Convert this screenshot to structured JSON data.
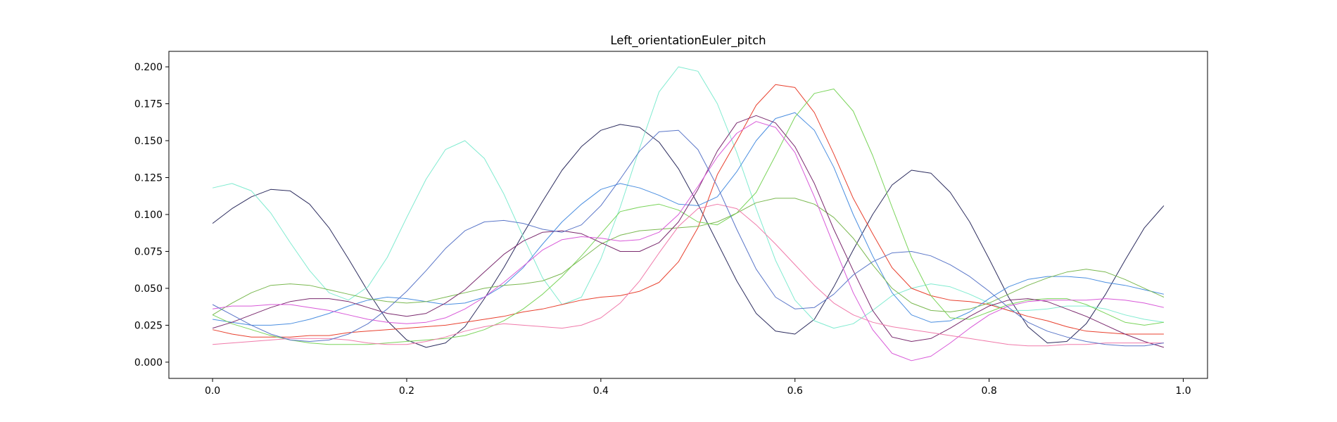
{
  "chart_data": {
    "type": "line",
    "title": "Left_orientationEuler_pitch",
    "xlabel": "",
    "ylabel": "",
    "xlim": [
      -0.045,
      1.025
    ],
    "ylim": [
      -0.011,
      0.2105
    ],
    "xticks": [
      0.0,
      0.2,
      0.4,
      0.6,
      0.8,
      1.0
    ],
    "xtick_labels": [
      "0.0",
      "0.2",
      "0.4",
      "0.6",
      "0.8",
      "1.0"
    ],
    "yticks": [
      0.0,
      0.025,
      0.05,
      0.075,
      0.1,
      0.125,
      0.15,
      0.175,
      0.2
    ],
    "ytick_labels": [
      "0.000",
      "0.025",
      "0.050",
      "0.075",
      "0.100",
      "0.125",
      "0.150",
      "0.175",
      "0.200"
    ],
    "grid": false,
    "legend": "none",
    "x": [
      0.0,
      0.02,
      0.04,
      0.06,
      0.08,
      0.1,
      0.12,
      0.14,
      0.16,
      0.18,
      0.2,
      0.22,
      0.24,
      0.26,
      0.28,
      0.3,
      0.32,
      0.34,
      0.36,
      0.38,
      0.4,
      0.42,
      0.44,
      0.46,
      0.48,
      0.5,
      0.52,
      0.54,
      0.56,
      0.58,
      0.6,
      0.62,
      0.64,
      0.66,
      0.68,
      0.7,
      0.72,
      0.74,
      0.76,
      0.78,
      0.8,
      0.82,
      0.84,
      0.86,
      0.88,
      0.9,
      0.92,
      0.94,
      0.96,
      0.98
    ],
    "series": [
      {
        "color": "#2c2c5e",
        "values": [
          0.094,
          0.104,
          0.112,
          0.117,
          0.116,
          0.107,
          0.091,
          0.07,
          0.048,
          0.028,
          0.015,
          0.01,
          0.013,
          0.024,
          0.043,
          0.064,
          0.087,
          0.109,
          0.13,
          0.146,
          0.157,
          0.161,
          0.159,
          0.149,
          0.131,
          0.107,
          0.081,
          0.055,
          0.033,
          0.021,
          0.019,
          0.029,
          0.051,
          0.076,
          0.1,
          0.12,
          0.13,
          0.128,
          0.115,
          0.095,
          0.07,
          0.044,
          0.024,
          0.013,
          0.014,
          0.026,
          0.046,
          0.069,
          0.091,
          0.106
        ]
      },
      {
        "color": "#80ebd0",
        "values": [
          0.118,
          0.121,
          0.116,
          0.101,
          0.081,
          0.062,
          0.047,
          0.042,
          0.051,
          0.071,
          0.098,
          0.124,
          0.144,
          0.15,
          0.138,
          0.114,
          0.085,
          0.057,
          0.039,
          0.044,
          0.07,
          0.105,
          0.145,
          0.183,
          0.2,
          0.197,
          0.175,
          0.142,
          0.104,
          0.069,
          0.042,
          0.028,
          0.023,
          0.026,
          0.035,
          0.045,
          0.05,
          0.053,
          0.051,
          0.046,
          0.04,
          0.035,
          0.035,
          0.036,
          0.038,
          0.038,
          0.036,
          0.032,
          0.029,
          0.027
        ]
      },
      {
        "color": "#e8402e",
        "values": [
          0.022,
          0.019,
          0.017,
          0.017,
          0.017,
          0.018,
          0.018,
          0.02,
          0.021,
          0.022,
          0.023,
          0.024,
          0.025,
          0.027,
          0.029,
          0.031,
          0.034,
          0.036,
          0.039,
          0.042,
          0.044,
          0.045,
          0.048,
          0.054,
          0.068,
          0.091,
          0.127,
          0.15,
          0.174,
          0.188,
          0.186,
          0.169,
          0.141,
          0.111,
          0.087,
          0.064,
          0.05,
          0.045,
          0.042,
          0.041,
          0.039,
          0.035,
          0.031,
          0.028,
          0.024,
          0.021,
          0.02,
          0.019,
          0.019,
          0.019
        ]
      },
      {
        "color": "#4a8ee0",
        "values": [
          0.029,
          0.027,
          0.025,
          0.025,
          0.026,
          0.029,
          0.033,
          0.038,
          0.042,
          0.044,
          0.043,
          0.041,
          0.039,
          0.04,
          0.044,
          0.052,
          0.064,
          0.08,
          0.095,
          0.107,
          0.117,
          0.121,
          0.118,
          0.113,
          0.107,
          0.106,
          0.112,
          0.129,
          0.15,
          0.165,
          0.169,
          0.157,
          0.132,
          0.1,
          0.072,
          0.047,
          0.032,
          0.027,
          0.028,
          0.034,
          0.043,
          0.051,
          0.056,
          0.058,
          0.058,
          0.057,
          0.054,
          0.052,
          0.049,
          0.046
        ]
      },
      {
        "color": "#7ad45a",
        "values": [
          0.032,
          0.026,
          0.022,
          0.018,
          0.015,
          0.013,
          0.012,
          0.012,
          0.012,
          0.013,
          0.014,
          0.015,
          0.016,
          0.018,
          0.022,
          0.028,
          0.036,
          0.046,
          0.058,
          0.072,
          0.087,
          0.102,
          0.105,
          0.107,
          0.103,
          0.095,
          0.093,
          0.101,
          0.115,
          0.14,
          0.166,
          0.182,
          0.185,
          0.17,
          0.14,
          0.105,
          0.071,
          0.045,
          0.03,
          0.029,
          0.034,
          0.039,
          0.042,
          0.043,
          0.043,
          0.039,
          0.033,
          0.027,
          0.025,
          0.027
        ]
      },
      {
        "color": "#7ab850",
        "values": [
          0.032,
          0.04,
          0.047,
          0.052,
          0.053,
          0.052,
          0.049,
          0.046,
          0.043,
          0.041,
          0.04,
          0.041,
          0.044,
          0.047,
          0.05,
          0.052,
          0.053,
          0.055,
          0.06,
          0.07,
          0.08,
          0.086,
          0.089,
          0.09,
          0.091,
          0.092,
          0.095,
          0.101,
          0.108,
          0.111,
          0.111,
          0.107,
          0.098,
          0.084,
          0.066,
          0.05,
          0.04,
          0.035,
          0.034,
          0.036,
          0.04,
          0.046,
          0.052,
          0.057,
          0.061,
          0.063,
          0.061,
          0.056,
          0.05,
          0.044
        ]
      },
      {
        "color": "#7a2a6e",
        "values": [
          0.023,
          0.027,
          0.032,
          0.037,
          0.041,
          0.043,
          0.043,
          0.041,
          0.037,
          0.033,
          0.031,
          0.033,
          0.04,
          0.049,
          0.061,
          0.073,
          0.082,
          0.088,
          0.089,
          0.087,
          0.081,
          0.075,
          0.075,
          0.081,
          0.095,
          0.117,
          0.143,
          0.162,
          0.167,
          0.162,
          0.146,
          0.121,
          0.09,
          0.062,
          0.035,
          0.017,
          0.014,
          0.016,
          0.023,
          0.031,
          0.038,
          0.042,
          0.043,
          0.041,
          0.036,
          0.031,
          0.025,
          0.019,
          0.014,
          0.01
        ]
      },
      {
        "color": "#d858d8",
        "values": [
          0.036,
          0.038,
          0.038,
          0.039,
          0.039,
          0.037,
          0.035,
          0.032,
          0.029,
          0.027,
          0.026,
          0.027,
          0.03,
          0.036,
          0.044,
          0.054,
          0.065,
          0.076,
          0.083,
          0.085,
          0.084,
          0.082,
          0.083,
          0.088,
          0.1,
          0.119,
          0.139,
          0.155,
          0.163,
          0.159,
          0.142,
          0.112,
          0.079,
          0.047,
          0.022,
          0.006,
          0.001,
          0.004,
          0.013,
          0.023,
          0.032,
          0.038,
          0.041,
          0.042,
          0.042,
          0.042,
          0.043,
          0.042,
          0.04,
          0.037
        ]
      },
      {
        "color": "#f07aaa",
        "values": [
          0.012,
          0.013,
          0.014,
          0.015,
          0.016,
          0.016,
          0.016,
          0.015,
          0.013,
          0.012,
          0.012,
          0.014,
          0.017,
          0.021,
          0.024,
          0.026,
          0.025,
          0.024,
          0.023,
          0.025,
          0.03,
          0.04,
          0.055,
          0.074,
          0.092,
          0.104,
          0.107,
          0.104,
          0.093,
          0.08,
          0.066,
          0.052,
          0.04,
          0.032,
          0.027,
          0.024,
          0.022,
          0.02,
          0.018,
          0.016,
          0.014,
          0.012,
          0.011,
          0.011,
          0.012,
          0.012,
          0.013,
          0.013,
          0.013,
          0.013
        ]
      },
      {
        "color": "#5a76c8",
        "values": [
          0.039,
          0.032,
          0.025,
          0.019,
          0.015,
          0.014,
          0.015,
          0.019,
          0.026,
          0.036,
          0.048,
          0.062,
          0.077,
          0.089,
          0.095,
          0.096,
          0.094,
          0.09,
          0.088,
          0.093,
          0.106,
          0.124,
          0.143,
          0.156,
          0.157,
          0.144,
          0.119,
          0.09,
          0.063,
          0.044,
          0.036,
          0.037,
          0.046,
          0.059,
          0.068,
          0.074,
          0.075,
          0.072,
          0.066,
          0.058,
          0.048,
          0.037,
          0.027,
          0.021,
          0.017,
          0.014,
          0.012,
          0.011,
          0.011,
          0.013
        ]
      }
    ]
  }
}
